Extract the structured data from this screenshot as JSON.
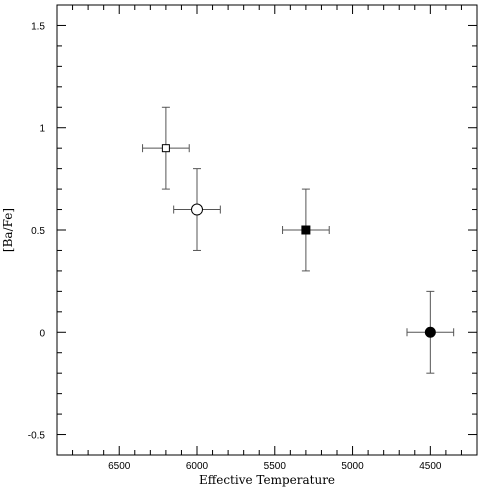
{
  "chart_data": {
    "type": "scatter",
    "title": "",
    "xlabel": "Effective Temperature",
    "ylabel": "[Ba/Fe]",
    "xlim": [
      6900,
      4200
    ],
    "ylim": [
      -0.6,
      1.6
    ],
    "x_reversed": true,
    "x_ticks": [
      6500,
      6000,
      5500,
      5000,
      4500
    ],
    "x_tick_labels": [
      "6500",
      "6000",
      "5500",
      "5000",
      "4500"
    ],
    "y_ticks": [
      -0.5,
      0,
      0.5,
      1,
      1.5
    ],
    "y_tick_labels": [
      "-0.5",
      "0",
      "0.5",
      "1",
      "1.5"
    ],
    "grid": false,
    "points": [
      {
        "x": 6200,
        "y": 0.9,
        "x_err": 150,
        "y_err": 0.2,
        "marker": "square",
        "filled": false
      },
      {
        "x": 6000,
        "y": 0.6,
        "x_err": 150,
        "y_err": 0.2,
        "marker": "circle",
        "filled": false
      },
      {
        "x": 5300,
        "y": 0.5,
        "x_err": 150,
        "y_err": 0.2,
        "marker": "square",
        "filled": true
      },
      {
        "x": 4500,
        "y": 0.0,
        "x_err": 150,
        "y_err": 0.2,
        "marker": "circle",
        "filled": true
      }
    ]
  }
}
